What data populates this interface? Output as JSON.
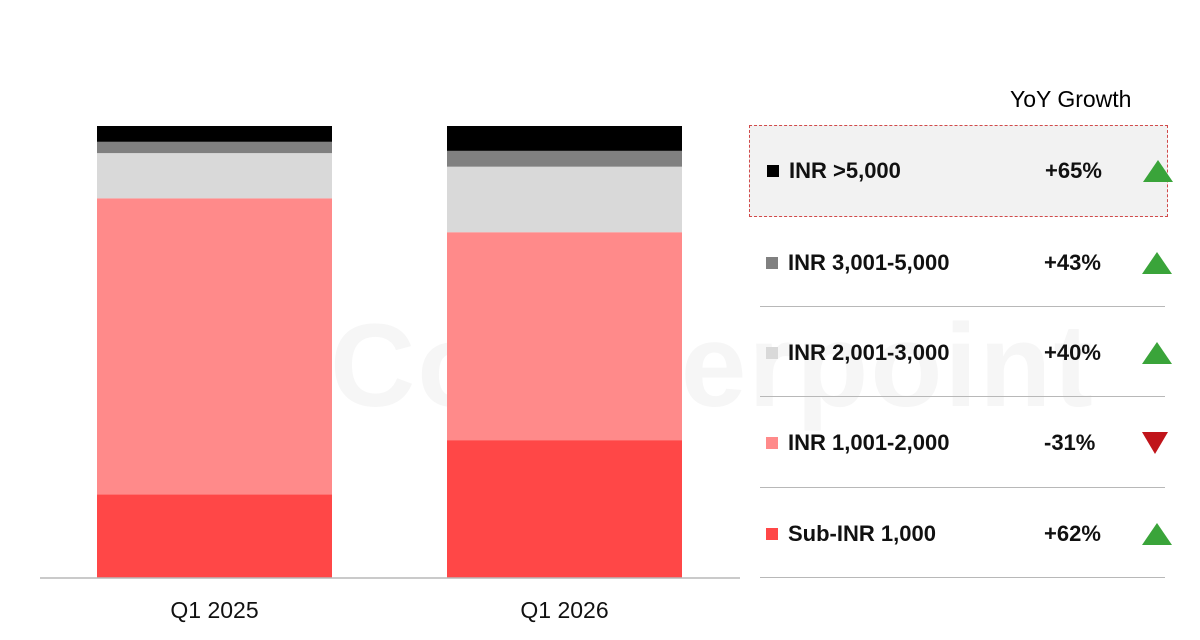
{
  "chart_data": {
    "type": "bar",
    "stacked": true,
    "percent_stacked": true,
    "categories": [
      "Q1 2025",
      "Q1 2026"
    ],
    "series": [
      {
        "name": "Sub-INR 1,000",
        "color": "#ff4747",
        "values": [
          18.5,
          30.5
        ]
      },
      {
        "name": "INR 1,001-2,000",
        "color": "#ff8a8a",
        "values": [
          65.5,
          46.0
        ]
      },
      {
        "name": "INR 2,001-3,000",
        "color": "#d9d9d9",
        "values": [
          10.0,
          14.5
        ]
      },
      {
        "name": "INR 3,001-5,000",
        "color": "#808080",
        "values": [
          2.5,
          3.5
        ]
      },
      {
        "name": "INR >5,000",
        "color": "#000000",
        "values": [
          3.5,
          5.5
        ]
      }
    ],
    "ylim": [
      0,
      100
    ],
    "grid": false,
    "legend_placement": "right"
  },
  "watermark": "Counterpoint",
  "legend": {
    "header": "YoY Growth",
    "rows": [
      {
        "label": "INR >5,000",
        "growth": "+65%",
        "direction": "up",
        "color": "#000000"
      },
      {
        "label": "INR 3,001-5,000",
        "growth": "+43%",
        "direction": "up",
        "color": "#808080"
      },
      {
        "label": "INR 2,001-3,000",
        "growth": "+40%",
        "direction": "up",
        "color": "#d9d9d9"
      },
      {
        "label": "INR 1,001-2,000",
        "growth": "-31%",
        "direction": "down",
        "color": "#ff8a8a"
      },
      {
        "label": "Sub-INR 1,000",
        "growth": "+62%",
        "direction": "up",
        "color": "#ff4747"
      }
    ]
  }
}
